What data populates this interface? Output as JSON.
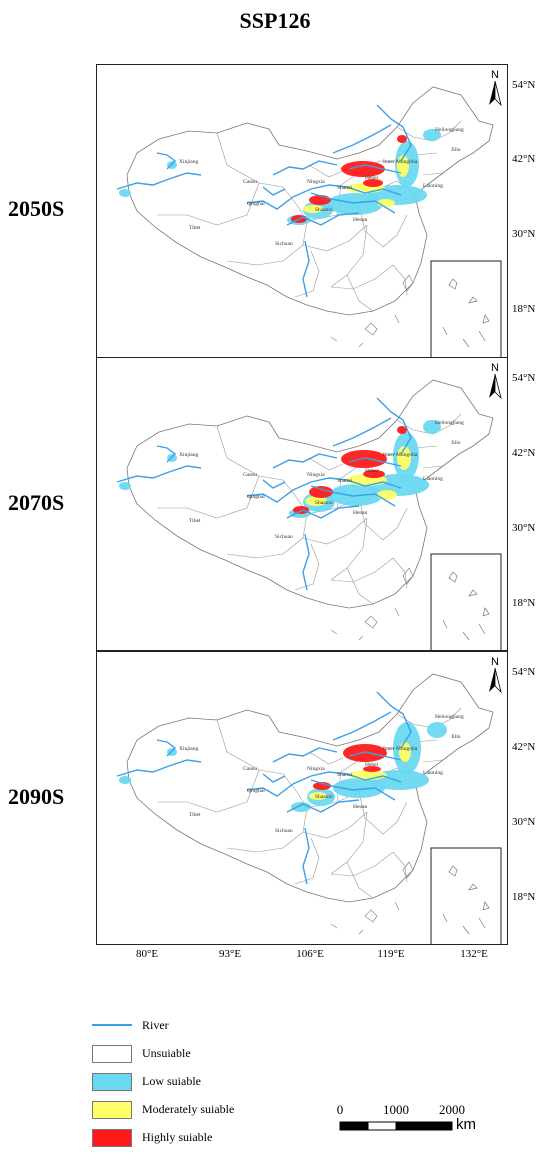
{
  "title": "SSP126",
  "panels": [
    {
      "label": "2050S"
    },
    {
      "label": "2070S"
    },
    {
      "label": "2090S"
    }
  ],
  "north_label": "N",
  "lat_ticks": [
    "54°N",
    "42°N",
    "30°N",
    "18°N"
  ],
  "lon_ticks": [
    "80°E",
    "93°E",
    "106°E",
    "119°E",
    "132°E"
  ],
  "map_labels": [
    "Heilongjiang",
    "Jilin",
    "Liaoning",
    "Inner Mongolia",
    "Hebei",
    "Shanxi",
    "Shaanxi",
    "Henan",
    "Gansu",
    "Qinghai",
    "Ningxia",
    "Xinjiang",
    "Tibet",
    "Sichuan"
  ],
  "legend": [
    {
      "label": "River",
      "kind": "line",
      "color": "#3aa0e8"
    },
    {
      "label": "Unsuiable",
      "kind": "box",
      "color": "#ffffff"
    },
    {
      "label": "Low suiable",
      "kind": "box",
      "color": "#6ad8f0"
    },
    {
      "label": "Moderately suiable",
      "kind": "box",
      "color": "#ffff66"
    },
    {
      "label": "Highly suiable",
      "kind": "box",
      "color": "#ff1a1a"
    }
  ],
  "scale_bar": {
    "ticks": [
      "0",
      "1000",
      "2000"
    ],
    "unit": "km"
  }
}
